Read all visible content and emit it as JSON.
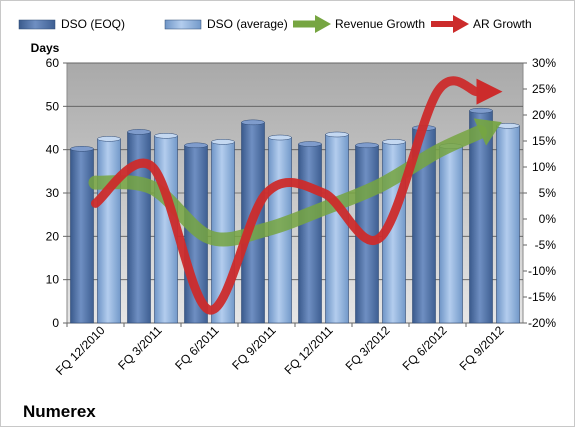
{
  "chart_data": {
    "type": "bar",
    "title": "Numerex",
    "ylabel": "Days",
    "ylim": [
      0,
      60
    ],
    "y_ticks": [
      0,
      10,
      20,
      30,
      40,
      50,
      60
    ],
    "y2lim": [
      -20,
      30
    ],
    "y2_ticks": [
      "-20%",
      "-15%",
      "-10%",
      "-5%",
      "0%",
      "5%",
      "10%",
      "15%",
      "20%",
      "25%",
      "30%"
    ],
    "y2_tick_values": [
      -20,
      -15,
      -10,
      -5,
      0,
      5,
      10,
      15,
      20,
      25,
      30
    ],
    "categories": [
      "FQ 12/2010",
      "FQ 3/2011",
      "FQ 6/2011",
      "FQ 9/2011",
      "FQ 12/2011",
      "FQ 3/2012",
      "FQ 6/2012",
      "FQ 9/2012"
    ],
    "grid": true,
    "legend_position": "top",
    "series": [
      {
        "name": "DSO (EOQ)",
        "kind": "bar",
        "axis": "left",
        "color": "#4f6fa3",
        "values": [
          40.2,
          44.1,
          41.0,
          46.3,
          41.3,
          41.0,
          45.0,
          49.0
        ]
      },
      {
        "name": "DSO (average)",
        "kind": "bar",
        "axis": "left",
        "color": "#8db3e2",
        "values": [
          42.5,
          43.2,
          41.8,
          42.8,
          43.5,
          41.8,
          40.8,
          45.5
        ]
      },
      {
        "name": "Revenue Growth",
        "kind": "line-arrow",
        "axis": "right",
        "color": "#76a541",
        "values": [
          7.0,
          6.0,
          -3.5,
          -2.0,
          2.0,
          6.5,
          13.0,
          18.0
        ]
      },
      {
        "name": "AR Growth",
        "kind": "line-arrow",
        "axis": "right",
        "color": "#cc2b2b",
        "values": [
          3.0,
          10.0,
          -17.5,
          5.0,
          5.0,
          -3.5,
          24.5,
          24.5
        ]
      }
    ]
  }
}
